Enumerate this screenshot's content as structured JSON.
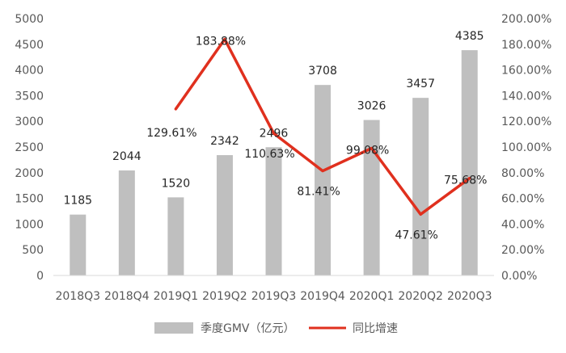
{
  "chart_data": {
    "type": "bar",
    "categories": [
      "2018Q3",
      "2018Q4",
      "2019Q1",
      "2019Q2",
      "2019Q3",
      "2019Q4",
      "2020Q1",
      "2020Q2",
      "2020Q3"
    ],
    "series": [
      {
        "name": "季度GMV（亿元）",
        "type": "bar",
        "axis": "left",
        "color": "#BFBFBF",
        "values": [
          1185,
          2044,
          1520,
          2342,
          2496,
          3708,
          3026,
          3457,
          4385
        ],
        "labels": [
          "1185",
          "2044",
          "1520",
          "2342",
          "2496",
          "3708",
          "3026",
          "3457",
          "4385"
        ]
      },
      {
        "name": "同比增速",
        "type": "line",
        "axis": "right",
        "color": "#E0301E",
        "values": [
          null,
          null,
          129.61,
          183.88,
          110.63,
          81.41,
          99.08,
          47.61,
          75.68
        ],
        "labels": [
          "",
          "",
          "129.61%",
          "183.88%",
          "110.63%",
          "81.41%",
          "99.08%",
          "47.61%",
          "75.68%"
        ]
      }
    ],
    "y_left": {
      "range": [
        0,
        5000
      ],
      "ticks": [
        0,
        500,
        1000,
        1500,
        2000,
        2500,
        3000,
        3500,
        4000,
        4500,
        5000
      ],
      "tick_labels": [
        "0",
        "500",
        "1000",
        "1500",
        "2000",
        "2500",
        "3000",
        "3500",
        "4000",
        "4500",
        "5000"
      ]
    },
    "y_right": {
      "range": [
        0,
        200
      ],
      "ticks": [
        0,
        20,
        40,
        60,
        80,
        100,
        120,
        140,
        160,
        180,
        200
      ],
      "tick_labels": [
        "0.00%",
        "20.00%",
        "40.00%",
        "60.00%",
        "80.00%",
        "100.00%",
        "120.00%",
        "140.00%",
        "160.00%",
        "180.00%",
        "200.00%"
      ]
    },
    "title": "",
    "xlabel": "",
    "grid": false,
    "legend_position": "bottom"
  }
}
